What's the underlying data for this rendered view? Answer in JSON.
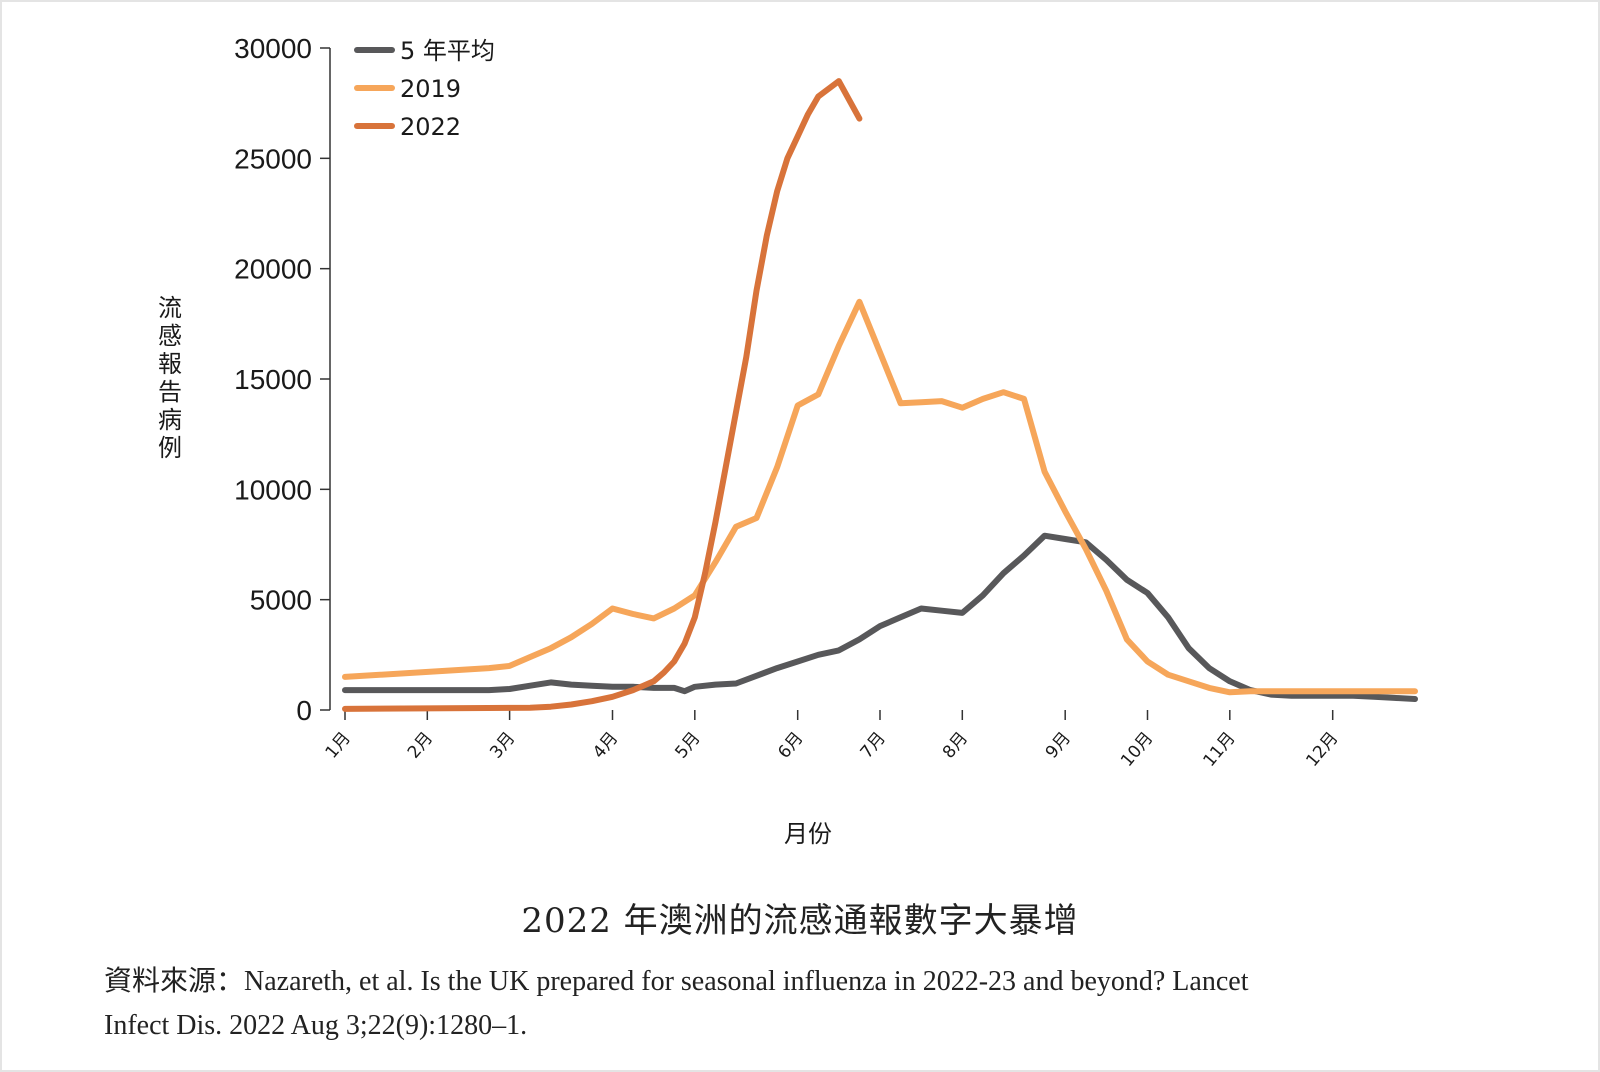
{
  "chart_data": {
    "type": "line",
    "ylabel": "流感報告病例",
    "xlabel": "月份",
    "ylim": [
      0,
      30000
    ],
    "yticks": [
      0,
      5000,
      10000,
      15000,
      20000,
      25000,
      30000
    ],
    "ytick_labels": [
      "0",
      "5000",
      "10000",
      "15000",
      "20000",
      "25000",
      "30000"
    ],
    "month_labels": [
      "1月",
      "2月",
      "3月",
      "4月",
      "5月",
      "6月",
      "7月",
      "8月",
      "9月",
      "10月",
      "11月",
      "12月"
    ],
    "month_ticks": [
      1,
      5,
      9,
      14,
      18,
      23,
      27,
      31,
      36,
      40,
      44,
      49
    ],
    "xlim": [
      1,
      53
    ],
    "legend_position": "top-left",
    "series": [
      {
        "name": "5 年平均",
        "color": "#58585a",
        "x": [
          1,
          8,
          9,
          10,
          11,
          12,
          13,
          14,
          15,
          16,
          17,
          17.5,
          18,
          19,
          20,
          21,
          22,
          23,
          24,
          25,
          26,
          27,
          28,
          29,
          30,
          31,
          32,
          33,
          34,
          35,
          36,
          37,
          38,
          39,
          40,
          41,
          42,
          43,
          44,
          45,
          46,
          47,
          48,
          49,
          50,
          51,
          52,
          53
        ],
        "values": [
          900,
          900,
          950,
          1100,
          1250,
          1150,
          1100,
          1050,
          1050,
          1000,
          1000,
          850,
          1050,
          1150,
          1200,
          1550,
          1900,
          2200,
          2500,
          2700,
          3200,
          3800,
          4200,
          4600,
          4500,
          4400,
          5200,
          6200,
          7000,
          7900,
          7750,
          7600,
          6800,
          5900,
          5300,
          4200,
          2800,
          1900,
          1300,
          900,
          700,
          650,
          650,
          650,
          650,
          600,
          550,
          500
        ]
      },
      {
        "name": "2019",
        "color": "#f6a65a",
        "x": [
          1,
          8,
          9,
          10,
          11,
          12,
          13,
          14,
          15,
          16,
          17,
          18,
          19,
          20,
          21,
          22,
          23,
          24,
          25,
          26,
          27,
          28,
          29,
          30,
          31,
          32,
          33,
          34,
          35,
          36,
          37,
          38,
          39,
          40,
          41,
          42,
          43,
          44,
          45,
          46,
          47,
          48,
          49,
          50,
          51,
          52,
          53
        ],
        "values": [
          1500,
          1900,
          2000,
          2400,
          2800,
          3300,
          3900,
          4600,
          4350,
          4150,
          4600,
          5200,
          6700,
          8300,
          8700,
          11000,
          13800,
          14300,
          16500,
          18500,
          16200,
          13900,
          13950,
          14000,
          13700,
          14100,
          14400,
          14100,
          10800,
          9000,
          7300,
          5400,
          3200,
          2200,
          1600,
          1300,
          1000,
          800,
          850,
          850,
          850,
          850,
          850,
          850,
          850,
          850,
          850
        ]
      },
      {
        "name": "2022",
        "color": "#d8733a",
        "x": [
          1,
          10,
          11,
          12,
          13,
          14,
          15,
          15.5,
          16,
          16.5,
          17,
          17.5,
          18,
          18.5,
          19,
          19.5,
          20,
          20.5,
          21,
          21.5,
          22,
          22.5,
          23,
          23.5,
          24,
          25,
          26
        ],
        "values": [
          50,
          100,
          150,
          250,
          400,
          600,
          900,
          1100,
          1300,
          1700,
          2200,
          3000,
          4200,
          6200,
          8500,
          11000,
          13500,
          16000,
          19000,
          21500,
          23500,
          25000,
          26000,
          27000,
          27800,
          28500,
          26800
        ]
      }
    ]
  },
  "caption": "2022 年澳洲的流感通報數字大暴增",
  "source_line1": "資料來源：Nazareth, et al. Is the UK prepared for seasonal influenza in 2022-23 and beyond? Lancet",
  "source_line2": "Infect Dis. 2022 Aug 3;22(9):1280–1."
}
